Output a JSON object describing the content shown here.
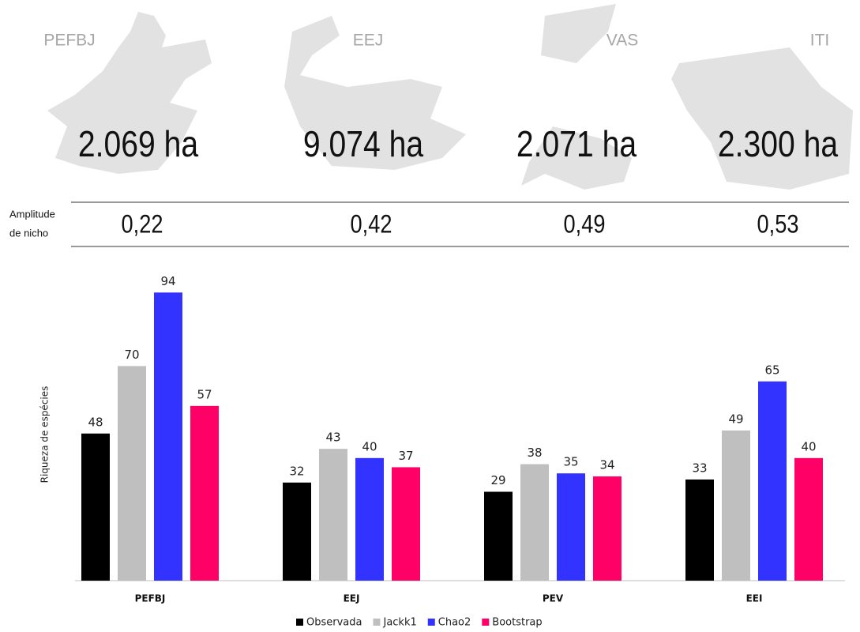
{
  "panels": [
    {
      "name": "PEFBJ",
      "area": "2.069 ha",
      "niche": "0,22"
    },
    {
      "name": "EEJ",
      "area": "9.074 ha",
      "niche": "0,42"
    },
    {
      "name": "VAS",
      "area": "2.071 ha",
      "niche": "0,49"
    },
    {
      "name": "ITI",
      "area": "2.300 ha",
      "niche": "0,53"
    }
  ],
  "niche_label": [
    "Amplitude",
    "de nicho"
  ],
  "chart_data": {
    "type": "bar",
    "y_label": "Riqueza de espécies",
    "categories": [
      "PEFBJ",
      "EEJ",
      "PEV",
      "EEI"
    ],
    "series": [
      {
        "name": "Observada",
        "color": "#000000",
        "values": [
          48,
          32,
          29,
          33
        ]
      },
      {
        "name": "Jackk1",
        "color": "#bfbfbf",
        "values": [
          70,
          43,
          38,
          49
        ]
      },
      {
        "name": "Chao2",
        "color": "#3333ff",
        "values": [
          94,
          40,
          35,
          65
        ]
      },
      {
        "name": "Bootstrap",
        "color": "#ff0066",
        "values": [
          57,
          37,
          34,
          40
        ]
      }
    ],
    "ylim": [
      0,
      100
    ]
  }
}
